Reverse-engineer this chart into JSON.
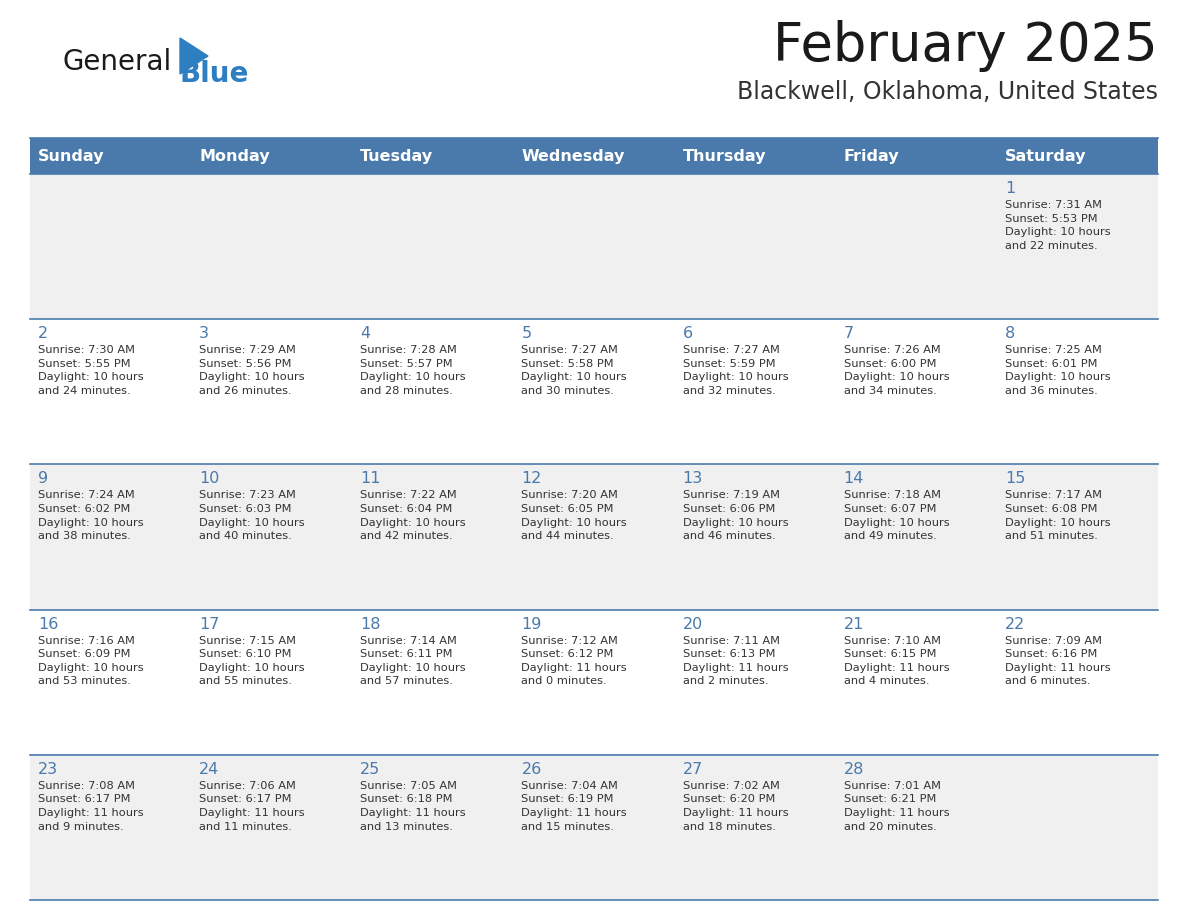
{
  "title": "February 2025",
  "subtitle": "Blackwell, Oklahoma, United States",
  "header_color": "#4a7aab",
  "header_text_color": "#ffffff",
  "day_names": [
    "Sunday",
    "Monday",
    "Tuesday",
    "Wednesday",
    "Thursday",
    "Friday",
    "Saturday"
  ],
  "bg_color": "#ffffff",
  "cell_bg_row0": "#f0f0f0",
  "cell_bg_row1": "#ffffff",
  "cell_bg_row2": "#f0f0f0",
  "cell_bg_row3": "#ffffff",
  "cell_bg_row4": "#f0f0f0",
  "separator_color": "#4a7aab",
  "text_color": "#333333",
  "day_number_color": "#4a7aab",
  "calendar_data": [
    [
      null,
      null,
      null,
      null,
      null,
      null,
      {
        "day": "1",
        "sunrise": "7:31 AM",
        "sunset": "5:53 PM",
        "daylight": "10 hours\nand 22 minutes."
      }
    ],
    [
      {
        "day": "2",
        "sunrise": "7:30 AM",
        "sunset": "5:55 PM",
        "daylight": "10 hours\nand 24 minutes."
      },
      {
        "day": "3",
        "sunrise": "7:29 AM",
        "sunset": "5:56 PM",
        "daylight": "10 hours\nand 26 minutes."
      },
      {
        "day": "4",
        "sunrise": "7:28 AM",
        "sunset": "5:57 PM",
        "daylight": "10 hours\nand 28 minutes."
      },
      {
        "day": "5",
        "sunrise": "7:27 AM",
        "sunset": "5:58 PM",
        "daylight": "10 hours\nand 30 minutes."
      },
      {
        "day": "6",
        "sunrise": "7:27 AM",
        "sunset": "5:59 PM",
        "daylight": "10 hours\nand 32 minutes."
      },
      {
        "day": "7",
        "sunrise": "7:26 AM",
        "sunset": "6:00 PM",
        "daylight": "10 hours\nand 34 minutes."
      },
      {
        "day": "8",
        "sunrise": "7:25 AM",
        "sunset": "6:01 PM",
        "daylight": "10 hours\nand 36 minutes."
      }
    ],
    [
      {
        "day": "9",
        "sunrise": "7:24 AM",
        "sunset": "6:02 PM",
        "daylight": "10 hours\nand 38 minutes."
      },
      {
        "day": "10",
        "sunrise": "7:23 AM",
        "sunset": "6:03 PM",
        "daylight": "10 hours\nand 40 minutes."
      },
      {
        "day": "11",
        "sunrise": "7:22 AM",
        "sunset": "6:04 PM",
        "daylight": "10 hours\nand 42 minutes."
      },
      {
        "day": "12",
        "sunrise": "7:20 AM",
        "sunset": "6:05 PM",
        "daylight": "10 hours\nand 44 minutes."
      },
      {
        "day": "13",
        "sunrise": "7:19 AM",
        "sunset": "6:06 PM",
        "daylight": "10 hours\nand 46 minutes."
      },
      {
        "day": "14",
        "sunrise": "7:18 AM",
        "sunset": "6:07 PM",
        "daylight": "10 hours\nand 49 minutes."
      },
      {
        "day": "15",
        "sunrise": "7:17 AM",
        "sunset": "6:08 PM",
        "daylight": "10 hours\nand 51 minutes."
      }
    ],
    [
      {
        "day": "16",
        "sunrise": "7:16 AM",
        "sunset": "6:09 PM",
        "daylight": "10 hours\nand 53 minutes."
      },
      {
        "day": "17",
        "sunrise": "7:15 AM",
        "sunset": "6:10 PM",
        "daylight": "10 hours\nand 55 minutes."
      },
      {
        "day": "18",
        "sunrise": "7:14 AM",
        "sunset": "6:11 PM",
        "daylight": "10 hours\nand 57 minutes."
      },
      {
        "day": "19",
        "sunrise": "7:12 AM",
        "sunset": "6:12 PM",
        "daylight": "11 hours\nand 0 minutes."
      },
      {
        "day": "20",
        "sunrise": "7:11 AM",
        "sunset": "6:13 PM",
        "daylight": "11 hours\nand 2 minutes."
      },
      {
        "day": "21",
        "sunrise": "7:10 AM",
        "sunset": "6:15 PM",
        "daylight": "11 hours\nand 4 minutes."
      },
      {
        "day": "22",
        "sunrise": "7:09 AM",
        "sunset": "6:16 PM",
        "daylight": "11 hours\nand 6 minutes."
      }
    ],
    [
      {
        "day": "23",
        "sunrise": "7:08 AM",
        "sunset": "6:17 PM",
        "daylight": "11 hours\nand 9 minutes."
      },
      {
        "day": "24",
        "sunrise": "7:06 AM",
        "sunset": "6:17 PM",
        "daylight": "11 hours\nand 11 minutes."
      },
      {
        "day": "25",
        "sunrise": "7:05 AM",
        "sunset": "6:18 PM",
        "daylight": "11 hours\nand 13 minutes."
      },
      {
        "day": "26",
        "sunrise": "7:04 AM",
        "sunset": "6:19 PM",
        "daylight": "11 hours\nand 15 minutes."
      },
      {
        "day": "27",
        "sunrise": "7:02 AM",
        "sunset": "6:20 PM",
        "daylight": "11 hours\nand 18 minutes."
      },
      {
        "day": "28",
        "sunrise": "7:01 AM",
        "sunset": "6:21 PM",
        "daylight": "11 hours\nand 20 minutes."
      },
      null
    ]
  ]
}
